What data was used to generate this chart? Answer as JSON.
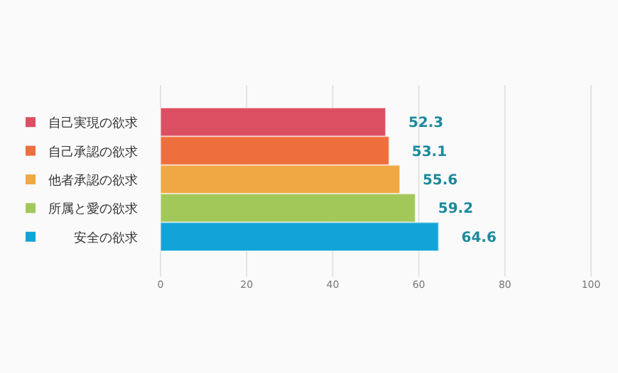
{
  "chart_data": {
    "type": "bar",
    "orientation": "horizontal",
    "categories": [
      "自己実現の欲求",
      "自己承認の欲求",
      "他者承認の欲求",
      "所属と愛の欲求",
      "安全の欲求"
    ],
    "values": [
      52.3,
      53.1,
      55.6,
      59.2,
      64.6
    ],
    "colors": [
      "#dc4f62",
      "#ee6e3e",
      "#f0a845",
      "#a3c85a",
      "#12a4d8"
    ],
    "xlim": [
      0,
      100
    ],
    "xticks": [
      0,
      20,
      40,
      60,
      80,
      100
    ],
    "grid": "x",
    "data_labels": true
  }
}
